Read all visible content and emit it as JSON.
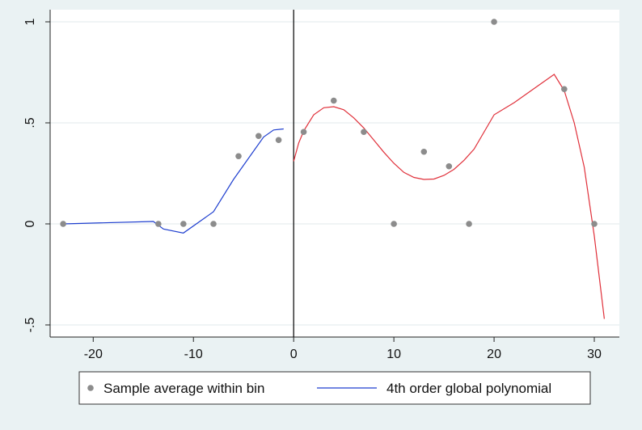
{
  "chart_data": {
    "type": "scatter",
    "title": "",
    "xlabel": "",
    "ylabel": "",
    "xlim": [
      -24.3,
      32.5
    ],
    "ylim": [
      -0.56,
      1.06
    ],
    "x_ticks": [
      -20,
      -10,
      0,
      10,
      20,
      30
    ],
    "x_tick_labels": [
      "-20",
      "-10",
      "0",
      "10",
      "20",
      "30"
    ],
    "y_ticks": [
      -0.5,
      0,
      0.5,
      1
    ],
    "y_tick_labels": [
      "-.5",
      "0",
      ".5",
      "1"
    ],
    "grid": true,
    "cutoff_x": 0,
    "legend_position": "bottom",
    "colors": {
      "background": "#eaf2f3",
      "plot_area": "#ffffff",
      "gridline": "#e6eeef",
      "points": "#8c8c8c",
      "left_fit": "#1f3fcf",
      "right_fit": "#e0303a",
      "cutoff_line": "#000000"
    },
    "legend": [
      {
        "label": "Sample average within bin",
        "marker": "point"
      },
      {
        "label": "4th order global polynomial",
        "marker": "line"
      }
    ],
    "series": [
      {
        "kind": "points",
        "x": [
          -23,
          -13.5,
          -11,
          -8,
          -5.5,
          -3.5,
          -1.5,
          1,
          4,
          7,
          10,
          13,
          15.5,
          17.5,
          20,
          27,
          30
        ],
        "y": [
          0,
          0,
          0,
          0,
          0.335,
          0.435,
          0.415,
          0.455,
          0.61,
          0.455,
          0,
          0.357,
          0.285,
          0,
          1,
          0.667,
          0
        ]
      },
      {
        "kind": "line-left",
        "x": [
          -23,
          -14,
          -13,
          -11,
          -8,
          -6,
          -4,
          -3,
          -2,
          -1
        ],
        "y": [
          0,
          0.012,
          -0.025,
          -0.045,
          0.06,
          0.22,
          0.36,
          0.43,
          0.465,
          0.47
        ]
      },
      {
        "kind": "line-right",
        "x": [
          0,
          0.5,
          1,
          2,
          3,
          4,
          5,
          6,
          7,
          8,
          9,
          10,
          11,
          12,
          13,
          14,
          15,
          16,
          17,
          18,
          20,
          22,
          24,
          26,
          27,
          28,
          29,
          30,
          31
        ],
        "y": [
          0.31,
          0.4,
          0.46,
          0.54,
          0.575,
          0.58,
          0.565,
          0.525,
          0.475,
          0.415,
          0.355,
          0.3,
          0.255,
          0.23,
          0.22,
          0.222,
          0.24,
          0.27,
          0.315,
          0.37,
          0.54,
          0.6,
          0.67,
          0.74,
          0.66,
          0.5,
          0.28,
          -0.06,
          -0.47
        ]
      }
    ]
  }
}
